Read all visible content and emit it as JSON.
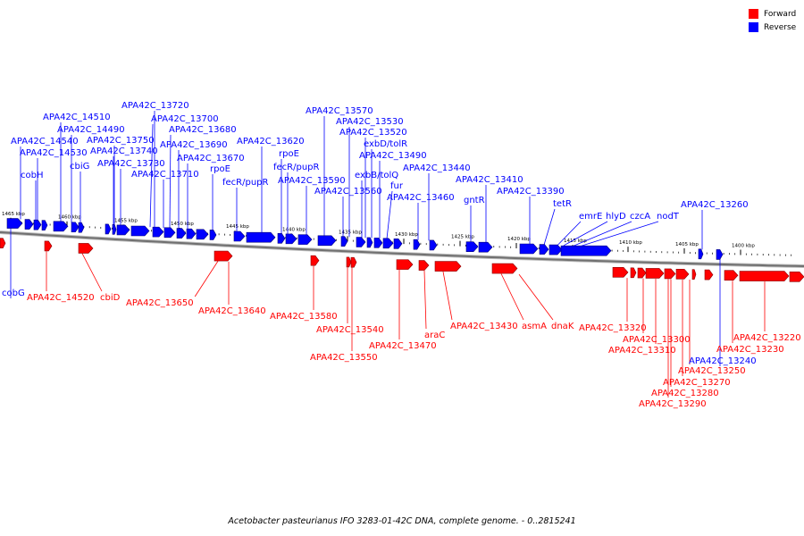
{
  "legend": {
    "forward_label": "Forward",
    "reverse_label": "Reverse",
    "forward_color": "#ff0000",
    "reverse_color": "#0000ff"
  },
  "caption": "Acetobacter pasteurianus IFO 3283-01-42C DNA, complete genome. - 0..2815241",
  "scale_labels": [
    "1465 kbp",
    "1460 kbp",
    "1455 kbp",
    "1450 kbp",
    "1445 kbp",
    "1440 kbp",
    "1435 kbp",
    "1430 kbp",
    "1425 kbp",
    "1420 kbp",
    "1415 kbp",
    "1410 kbp",
    "1405 kbp",
    "1400 kbp"
  ],
  "reverse_labels": [
    "APA42C_13720",
    "APA42C_14510",
    "APA42C_13700",
    "APA42C_14490",
    "APA42C_13680",
    "APA42C_14540",
    "APA42C_13750",
    "APA42C_13690",
    "APA42C_14530",
    "APA42C_13740",
    "APA42C_13670",
    "cbiG",
    "APA42C_13730",
    "rpoE",
    "cobH",
    "APA42C_13710",
    "fecR/pupR",
    "APA42C_13620",
    "rpoE",
    "fecR/pupR",
    "APA42C_13590",
    "APA42C_13570",
    "APA42C_13530",
    "APA42C_13520",
    "exbD/tolR",
    "APA42C_13490",
    "exbB/tolQ",
    "APA42C_13440",
    "fur",
    "APA42C_13560",
    "APA42C_13460",
    "APA42C_13410",
    "gntR",
    "APA42C_13390",
    "tetR",
    "emrE",
    "hlyD",
    "czcA",
    "nodT",
    "APA42C_13260",
    "cobG",
    "APA42C_13240"
  ],
  "forward_labels": [
    "APA42C_14520",
    "cbiD",
    "APA42C_13650",
    "APA42C_13640",
    "APA42C_13580",
    "APA42C_13540",
    "APA42C_13550",
    "APA42C_13470",
    "araC",
    "APA42C_13430",
    "asmA",
    "dnaK",
    "APA42C_13320",
    "APA42C_13300",
    "APA42C_13310",
    "APA42C_13220",
    "APA42C_13230",
    "APA42C_13250",
    "APA42C_13270",
    "APA42C_13280",
    "APA42C_13290"
  ]
}
